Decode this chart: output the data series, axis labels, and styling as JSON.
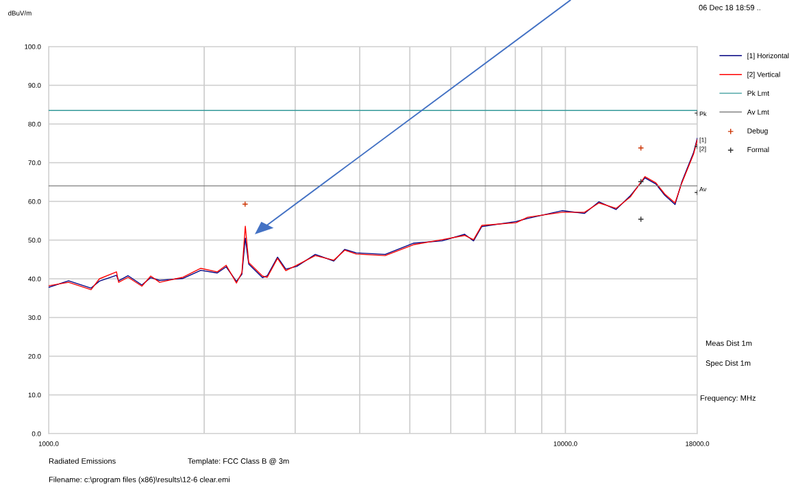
{
  "chart_data": {
    "type": "line",
    "ylabel": "dBuV/m",
    "xlabel": "Frequency: MHz",
    "log": "x",
    "xlim": [
      1000,
      18000
    ],
    "xticks": [
      {
        "value": 1000,
        "label": "1000.0"
      },
      {
        "value": 2000,
        "label": null
      },
      {
        "value": 3000,
        "label": null
      },
      {
        "value": 4000,
        "label": null
      },
      {
        "value": 5000,
        "label": null
      },
      {
        "value": 6000,
        "label": null
      },
      {
        "value": 7000,
        "label": null
      },
      {
        "value": 8000,
        "label": null
      },
      {
        "value": 9000,
        "label": null
      },
      {
        "value": 10000,
        "label": "10000.0"
      },
      {
        "value": 18000,
        "label": "18000.0"
      }
    ],
    "ylim": [
      0,
      100
    ],
    "yticks": [
      {
        "value": 0,
        "label": "0.0"
      },
      {
        "value": 10,
        "label": "10.0"
      },
      {
        "value": 20,
        "label": "20.0"
      },
      {
        "value": 30,
        "label": "30.0"
      },
      {
        "value": 40,
        "label": "40.0"
      },
      {
        "value": 50,
        "label": "50.0"
      },
      {
        "value": 60,
        "label": "60.0"
      },
      {
        "value": 70,
        "label": "70.0"
      },
      {
        "value": 80,
        "label": "80.0"
      },
      {
        "value": 90,
        "label": "90.0"
      },
      {
        "value": 100,
        "label": "100.0"
      }
    ],
    "grid": true,
    "legend": "right",
    "series": [
      {
        "name": "[1] Horizontal",
        "color": "#000080",
        "x": [
          1000,
          1093,
          1208,
          1254,
          1353,
          1366,
          1425,
          1515,
          1576,
          1640,
          1820,
          1970,
          2120,
          2206,
          2309,
          2366,
          2402,
          2439,
          2593,
          2649,
          2773,
          2877,
          3021,
          3281,
          3563,
          3741,
          3940,
          4480,
          5078,
          5771,
          6383,
          6642,
          6890,
          8025,
          8453,
          9849,
          10890,
          11614,
          12535,
          13366,
          14253,
          14964,
          15570,
          16300,
          16805,
          17700,
          18000
        ],
        "values": [
          37.8,
          39.5,
          37.6,
          39.4,
          40.9,
          39.5,
          40.8,
          38.4,
          40.3,
          39.6,
          40.1,
          42.2,
          41.5,
          43.1,
          39.3,
          41.2,
          50.5,
          43.8,
          40.3,
          40.8,
          45.6,
          42.5,
          43.2,
          46.3,
          44.6,
          47.6,
          46.7,
          46.3,
          49.2,
          49.8,
          51.5,
          49.8,
          53.5,
          54.8,
          55.6,
          57.6,
          56.9,
          59.9,
          57.9,
          61.5,
          66.1,
          64.5,
          61.6,
          59.2,
          65.1,
          72.6,
          76.3
        ]
      },
      {
        "name": "[2] Vertical",
        "color": "#ff0000",
        "x": [
          1000,
          1093,
          1208,
          1254,
          1353,
          1366,
          1425,
          1515,
          1576,
          1640,
          1820,
          1970,
          2120,
          2206,
          2309,
          2366,
          2402,
          2439,
          2593,
          2649,
          2773,
          2877,
          3021,
          3281,
          3563,
          3741,
          3940,
          4480,
          5078,
          5771,
          6383,
          6642,
          6890,
          8025,
          8453,
          9849,
          10890,
          11614,
          12535,
          13366,
          14253,
          14964,
          15570,
          16300,
          16805,
          17700,
          18000
        ],
        "values": [
          38.2,
          39.1,
          37.2,
          40.0,
          41.8,
          39.1,
          40.4,
          38.1,
          40.7,
          39.1,
          40.4,
          42.7,
          41.8,
          43.5,
          38.9,
          41.6,
          53.6,
          44.2,
          40.7,
          40.4,
          45.3,
          42.1,
          43.5,
          46.0,
          44.8,
          47.4,
          46.4,
          46.0,
          48.8,
          50.1,
          51.2,
          50.1,
          53.8,
          54.5,
          55.9,
          57.2,
          57.2,
          59.6,
          58.2,
          61.2,
          66.4,
          64.8,
          61.9,
          59.6,
          64.8,
          72.2,
          75.9
        ]
      },
      {
        "name": "Pk Lmt",
        "type": "line",
        "color": "#339999",
        "x": [
          1000,
          18000
        ],
        "values": [
          83.5,
          83.5
        ]
      },
      {
        "name": "Av Lmt",
        "type": "line",
        "color": "#808080",
        "x": [
          1000,
          18000
        ],
        "values": [
          64.0,
          64.0
        ]
      },
      {
        "name": "Debug",
        "type": "scatter",
        "marker": "cross",
        "color": "#cc3300",
        "x": [
          2400,
          14000
        ],
        "values": [
          59.3,
          73.8
        ]
      },
      {
        "name": "Formal",
        "type": "scatter",
        "marker": "cross",
        "color": "#333333",
        "x": [
          14000,
          14000,
          18000,
          18000,
          18000
        ],
        "values": [
          55.4,
          65.1,
          82.8,
          74.2,
          62.3
        ]
      }
    ],
    "annotations": [
      "Pk",
      "Av",
      "[1]",
      "[2]",
      "06 Dec 18 18:59 ..",
      "Meas Dist 1m",
      "Spec Dist 1m",
      "Radiated Emissions",
      "Template: FCC Class B @ 3m",
      "Filename: c:\\program files (x86)\\results\\12-6 clear.emi"
    ]
  }
}
